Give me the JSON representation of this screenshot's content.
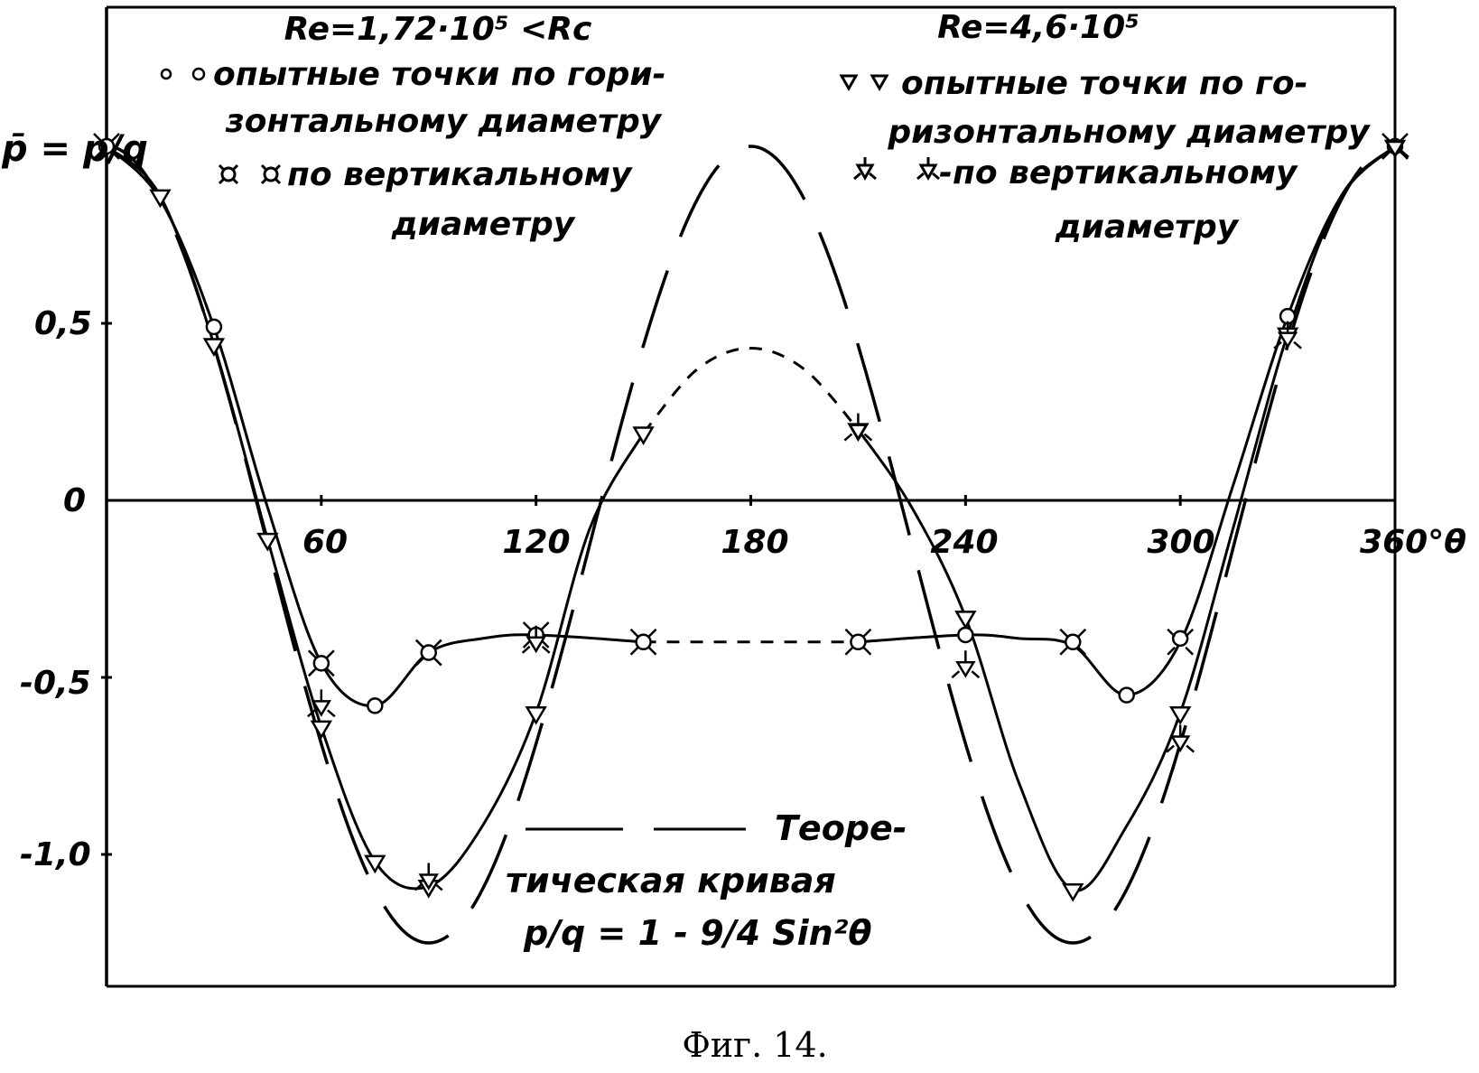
{
  "chart_data": {
    "type": "line",
    "xlabel": "θ",
    "ylabel": "p̄ = p/q",
    "xlim": [
      0,
      360
    ],
    "ylim": [
      -1.3,
      1.1
    ],
    "x_ticks": [
      "60",
      "120",
      "180",
      "240",
      "300",
      "360°θ"
    ],
    "y_ticks": [
      "0,5",
      "0",
      "-0,5",
      "-1,0"
    ],
    "grid": false,
    "caption": "Фиг. 14.",
    "legend_left": {
      "title": "Re=1,72·10⁵ <Rc",
      "line1": "опытные точки по гори-",
      "line2": "зонтальному диаметру",
      "line3": "по вертикальному",
      "line4": "диаметру"
    },
    "legend_right": {
      "title": "Re=4,6·10⁵",
      "line1": "опытные точки по го-",
      "line2": "ризонтальному диаметру",
      "line3": "-по вертикальному",
      "line4": "диаметру"
    },
    "theory_legend": {
      "line1": "Теоре-",
      "line2": "тическая кривая",
      "formula": "p/q = 1 - 9/4 Sin²θ"
    },
    "series": [
      {
        "name": "Re=1,72·10⁵ horizontal",
        "marker": "circle",
        "x": [
          0,
          30,
          60,
          75,
          90,
          120,
          150,
          210,
          240,
          270,
          285,
          300,
          330,
          360
        ],
        "y": [
          1.0,
          0.49,
          -0.46,
          -0.58,
          -0.43,
          -0.38,
          -0.4,
          -0.4,
          -0.38,
          -0.4,
          -0.55,
          -0.39,
          0.52,
          1.0
        ]
      },
      {
        "name": "Re=1,72·10⁵ vertical",
        "marker": "crossed-circle",
        "x": [
          0,
          60,
          90,
          120,
          150,
          210,
          270,
          300,
          360
        ],
        "y": [
          1.0,
          -0.46,
          -0.43,
          -0.38,
          -0.4,
          -0.4,
          -0.4,
          -0.4,
          1.0
        ]
      },
      {
        "name": "Re=4,6·10⁵ horizontal",
        "marker": "triangle",
        "x": [
          15,
          30,
          45,
          60,
          75,
          90,
          120,
          150,
          210,
          240,
          270,
          300,
          330,
          360
        ],
        "y": [
          0.86,
          0.44,
          -0.11,
          -0.64,
          -1.02,
          -1.09,
          -0.6,
          0.19,
          0.2,
          -0.33,
          -1.1,
          -0.6,
          0.47,
          1.0
        ]
      },
      {
        "name": "Re=4,6·10⁵ vertical",
        "marker": "star",
        "x": [
          60,
          90,
          120,
          210,
          240,
          300,
          330,
          360
        ],
        "y": [
          -0.58,
          -1.07,
          -0.4,
          0.2,
          -0.47,
          -0.68,
          0.46,
          1.0
        ]
      }
    ],
    "curves": [
      {
        "name": "Re=1,72·10⁵ curve",
        "style": "solid",
        "dashed_between": [
          150,
          210
        ],
        "x": [
          0,
          15,
          30,
          45,
          60,
          75,
          90,
          105,
          120,
          150,
          180,
          210,
          240,
          255,
          270,
          285,
          300,
          315,
          330,
          345,
          360
        ],
        "y": [
          1.0,
          0.85,
          0.49,
          -0.02,
          -0.46,
          -0.58,
          -0.43,
          -0.39,
          -0.38,
          -0.4,
          -0.4,
          -0.4,
          -0.38,
          -0.39,
          -0.41,
          -0.55,
          -0.4,
          0.05,
          0.52,
          0.86,
          1.0
        ]
      },
      {
        "name": "Re=4,6·10⁵ curve",
        "style": "solid",
        "dashed_between": [
          150,
          210
        ],
        "x": [
          0,
          15,
          30,
          45,
          60,
          75,
          90,
          105,
          120,
          135,
          150,
          165,
          180,
          195,
          210,
          225,
          240,
          255,
          270,
          285,
          300,
          315,
          330,
          345,
          360
        ],
        "y": [
          1.0,
          0.86,
          0.44,
          -0.11,
          -0.64,
          -1.02,
          -1.09,
          -0.92,
          -0.6,
          -0.08,
          0.19,
          0.37,
          0.43,
          0.37,
          0.2,
          -0.02,
          -0.33,
          -0.8,
          -1.1,
          -0.92,
          -0.6,
          -0.07,
          0.47,
          0.86,
          1.0
        ]
      },
      {
        "name": "Теоретическая кривая",
        "style": "long-dash",
        "formula_coef": 2.25
      }
    ]
  }
}
